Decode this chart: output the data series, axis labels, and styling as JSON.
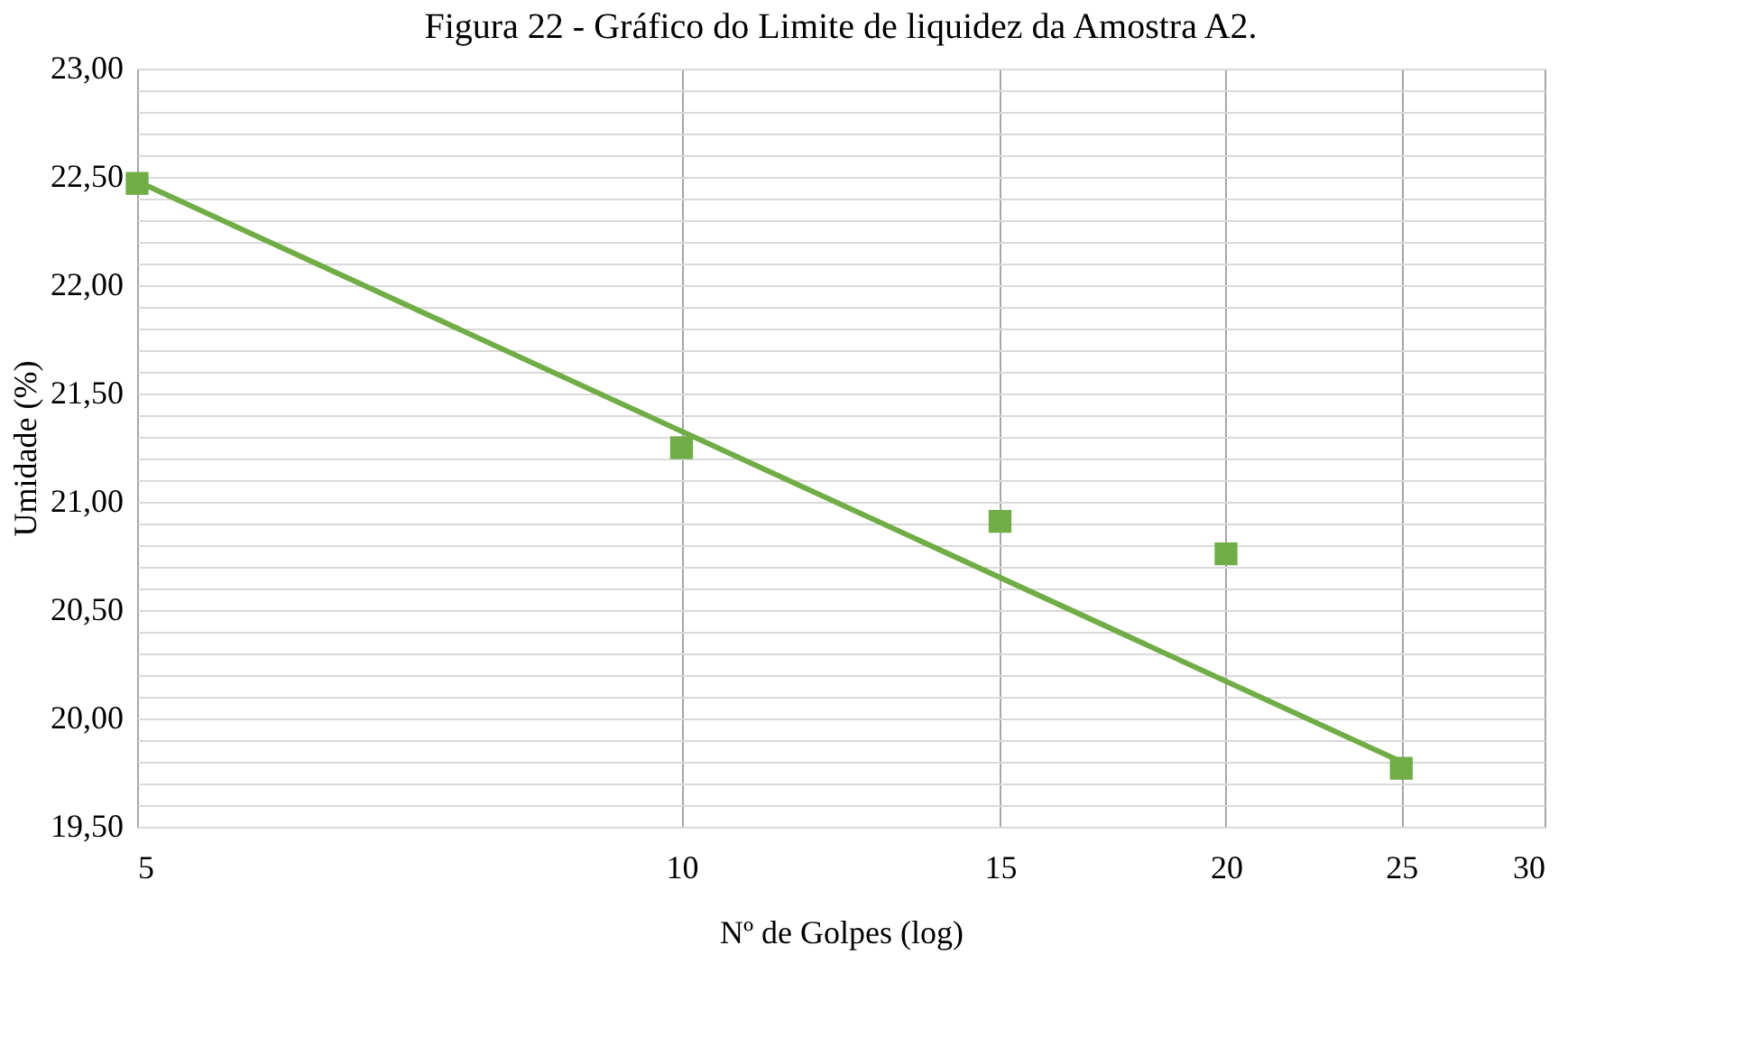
{
  "chart_data": {
    "type": "scatter",
    "title": "Figura 22 - Gráfico do Limite de liquidez da Amostra A2.",
    "xlabel": "Nº de Golpes (log)",
    "ylabel": "Umidade (%)",
    "log": "x",
    "xlim": [
      5,
      30
    ],
    "xticks": [
      5,
      10,
      15,
      20,
      25,
      30
    ],
    "ylim": [
      19.5,
      23.0
    ],
    "yticks": [
      {
        "value": 19.5,
        "label": "19,50"
      },
      {
        "value": 19.6,
        "label": null
      },
      {
        "value": 19.7,
        "label": null
      },
      {
        "value": 19.8,
        "label": null
      },
      {
        "value": 19.9,
        "label": null
      },
      {
        "value": 20.0,
        "label": "20,00"
      },
      {
        "value": 20.1,
        "label": null
      },
      {
        "value": 20.2,
        "label": null
      },
      {
        "value": 20.3,
        "label": null
      },
      {
        "value": 20.4,
        "label": null
      },
      {
        "value": 20.5,
        "label": "20,50"
      },
      {
        "value": 20.6,
        "label": null
      },
      {
        "value": 20.7,
        "label": null
      },
      {
        "value": 20.8,
        "label": null
      },
      {
        "value": 20.9,
        "label": null
      },
      {
        "value": 21.0,
        "label": "21,00"
      },
      {
        "value": 21.1,
        "label": null
      },
      {
        "value": 21.2,
        "label": null
      },
      {
        "value": 21.3,
        "label": null
      },
      {
        "value": 21.4,
        "label": null
      },
      {
        "value": 21.5,
        "label": "21,50"
      },
      {
        "value": 21.6,
        "label": null
      },
      {
        "value": 21.7,
        "label": null
      },
      {
        "value": 21.8,
        "label": null
      },
      {
        "value": 21.9,
        "label": null
      },
      {
        "value": 22.0,
        "label": "22,00"
      },
      {
        "value": 22.1,
        "label": null
      },
      {
        "value": 22.2,
        "label": null
      },
      {
        "value": 22.3,
        "label": null
      },
      {
        "value": 22.4,
        "label": null
      },
      {
        "value": 22.5,
        "label": "22,50"
      },
      {
        "value": 22.6,
        "label": null
      },
      {
        "value": 22.7,
        "label": null
      },
      {
        "value": 22.8,
        "label": null
      },
      {
        "value": 22.9,
        "label": null
      },
      {
        "value": 23.0,
        "label": "23,00"
      }
    ],
    "grid": true,
    "marker": "square",
    "series": [
      {
        "color": "#70ad47",
        "x": [
          5,
          10,
          15,
          20,
          25
        ],
        "values": [
          22.47,
          21.25,
          20.91,
          20.76,
          19.77
        ]
      },
      {
        "type": "line",
        "marker": "none",
        "color": "#70ad47",
        "x": [
          5,
          25
        ],
        "values": [
          22.48,
          19.8
        ]
      }
    ]
  }
}
